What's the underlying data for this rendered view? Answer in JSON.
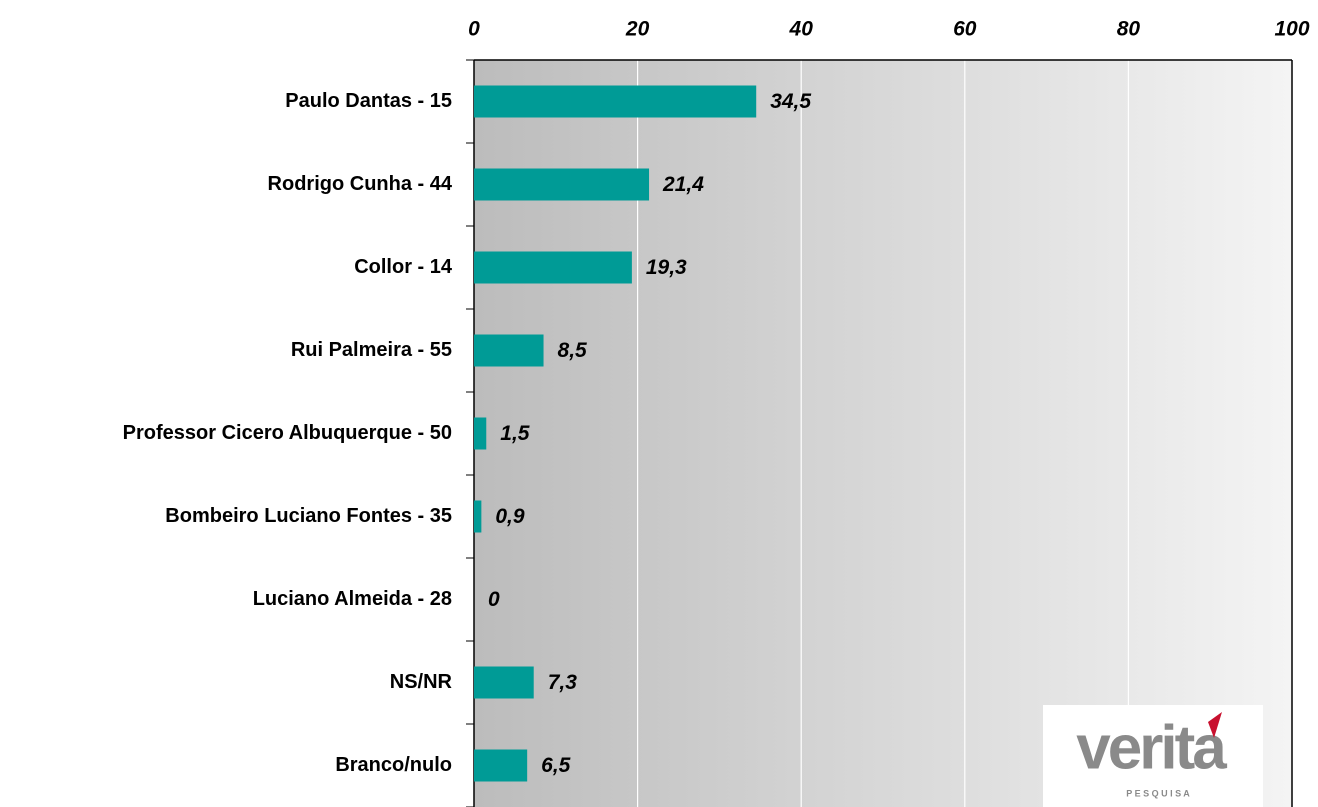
{
  "chart_data": {
    "type": "bar",
    "orientation": "horizontal",
    "categories": [
      "Paulo Dantas - 15",
      "Rodrigo Cunha - 44",
      "Collor - 14",
      "Rui Palmeira - 55",
      "Professor Cicero Albuquerque - 50",
      "Bombeiro Luciano Fontes - 35",
      "Luciano Almeida - 28",
      "NS/NR",
      "Branco/nulo"
    ],
    "values": [
      34.5,
      21.4,
      19.3,
      8.5,
      1.5,
      0.9,
      0,
      7.3,
      6.5
    ],
    "value_labels": [
      "34,5",
      "21,4",
      "19,3",
      "8,5",
      "1,5",
      "0,9",
      "0",
      "7,3",
      "6,5"
    ],
    "color": "#009b96",
    "xlim": [
      0,
      100
    ],
    "xticks": [
      0,
      20,
      40,
      60,
      80,
      100
    ],
    "grid": true
  },
  "logo": {
    "text": "verita",
    "subtitle": "P E S Q U I S A"
  }
}
